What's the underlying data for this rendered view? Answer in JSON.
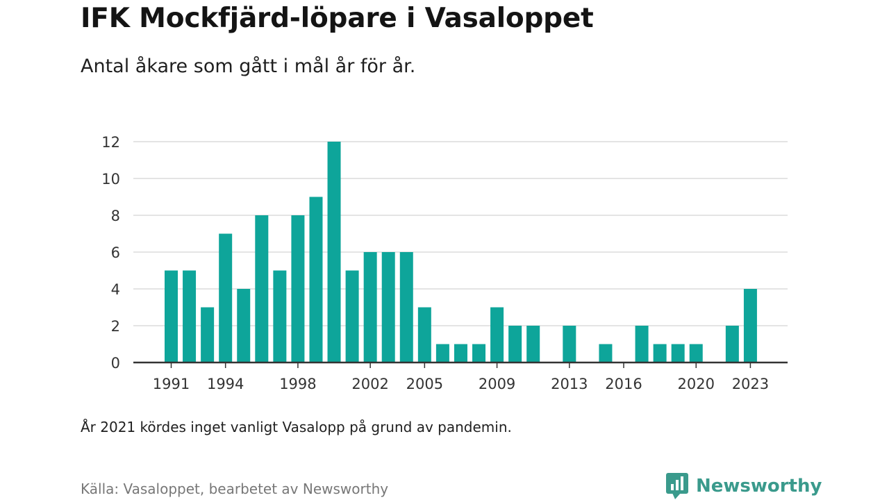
{
  "header": {
    "title": "IFK Mockfjärd-löpare i Vasaloppet",
    "subtitle": "Antal åkare som gått i mål år för år."
  },
  "footer": {
    "note": "År 2021 kördes inget vanligt Vasalopp på grund av pandemin.",
    "source": "Källa: Vasaloppet, bearbetet av Newsworthy",
    "brand": "Newsworthy"
  },
  "colors": {
    "bar": "#0ea59a",
    "grid": "#dcdcdc",
    "axis": "#333333",
    "brand": "#3a9a8c"
  },
  "icons": {
    "brand_logo": "newsworthy-logo-icon"
  },
  "chart_data": {
    "type": "bar",
    "title": "IFK Mockfjärd-löpare i Vasaloppet",
    "subtitle": "Antal åkare som gått i mål år för år.",
    "xlabel": "",
    "ylabel": "",
    "ylim": [
      0,
      12
    ],
    "yticks": [
      0,
      2,
      4,
      6,
      8,
      10,
      12
    ],
    "xticks": [
      1991,
      1994,
      1998,
      2002,
      2005,
      2009,
      2013,
      2016,
      2020,
      2023
    ],
    "grid": true,
    "legend": "none",
    "categories": [
      1991,
      1992,
      1993,
      1994,
      1995,
      1996,
      1997,
      1998,
      1999,
      2000,
      2001,
      2002,
      2003,
      2004,
      2005,
      2006,
      2007,
      2008,
      2009,
      2010,
      2011,
      2012,
      2013,
      2014,
      2015,
      2016,
      2017,
      2018,
      2019,
      2020,
      2021,
      2022,
      2023
    ],
    "values": [
      5,
      5,
      3,
      7,
      4,
      8,
      5,
      8,
      9,
      12,
      5,
      6,
      6,
      6,
      3,
      1,
      1,
      1,
      3,
      2,
      2,
      0,
      2,
      0,
      1,
      0,
      2,
      1,
      1,
      1,
      0,
      2,
      4
    ]
  }
}
